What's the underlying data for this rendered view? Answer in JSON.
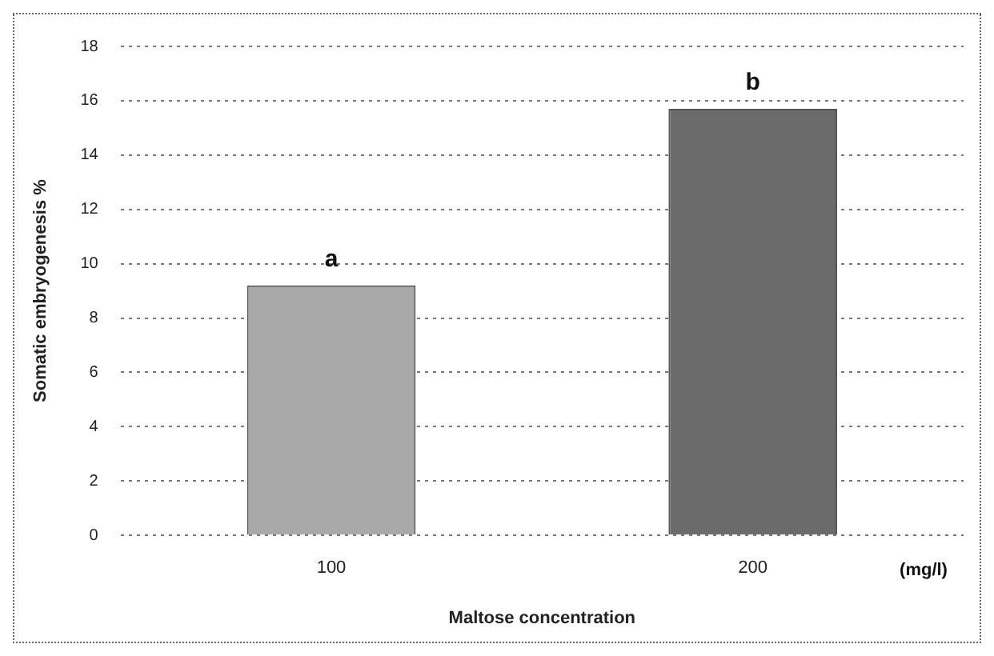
{
  "chart_data": {
    "type": "bar",
    "xlabel": "Maltose concentration",
    "ylabel": "Somatic embryogenesis %",
    "categories": [
      "100",
      "200"
    ],
    "values": [
      9.2,
      15.7
    ],
    "colors": [
      "#a9a9a9",
      "#6b6b6b"
    ],
    "ylim": [
      0,
      18
    ],
    "yticks": [
      0,
      2,
      4,
      6,
      8,
      10,
      12,
      14,
      16,
      18
    ],
    "grid": "y",
    "annotations": [
      "a",
      "b",
      "(mg/l)"
    ]
  }
}
